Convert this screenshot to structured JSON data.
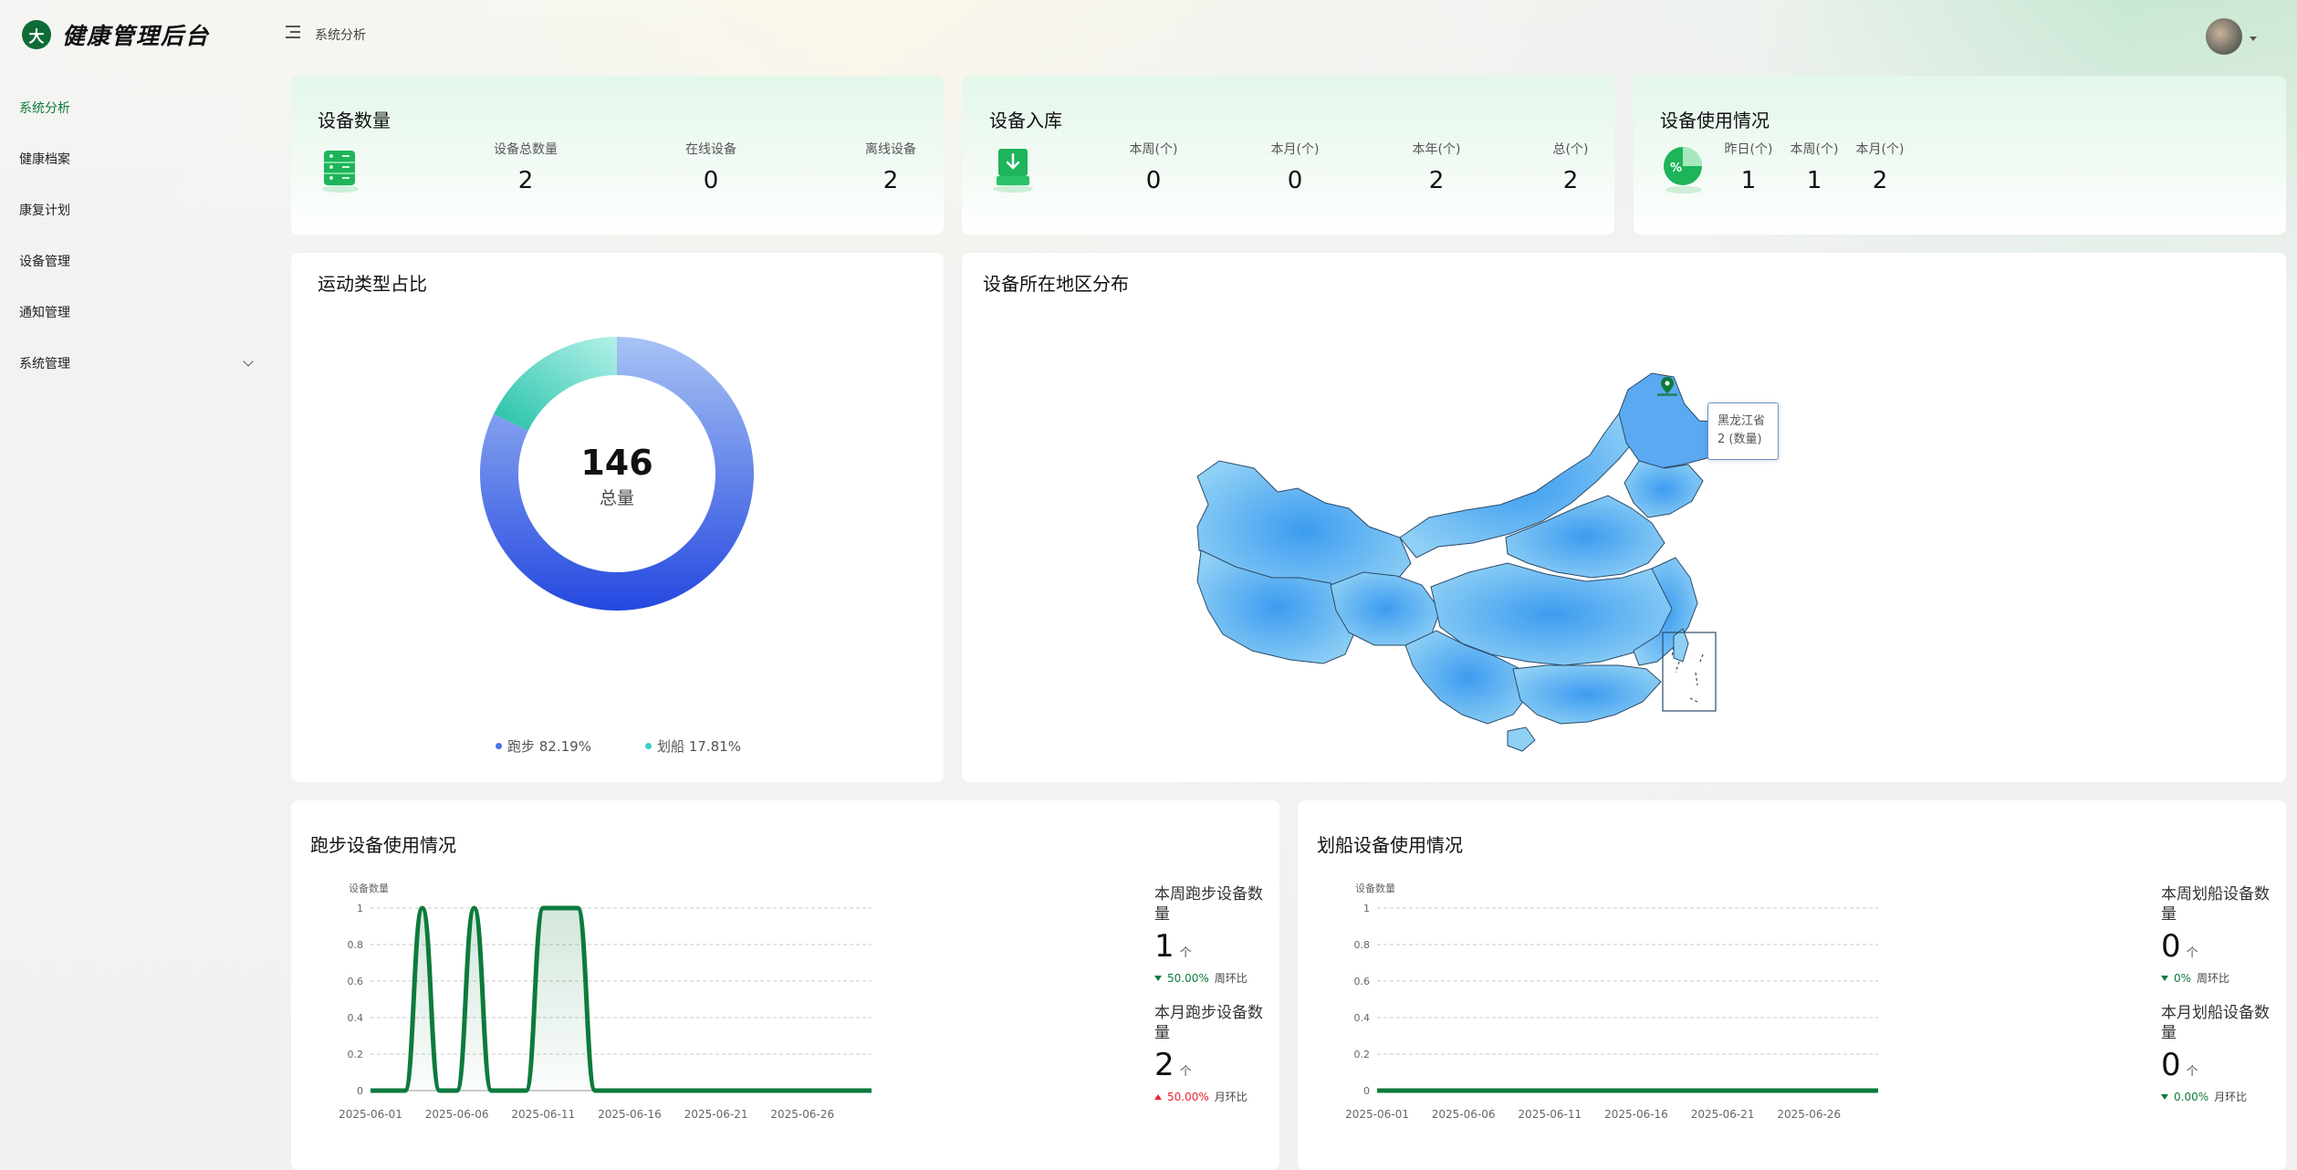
{
  "app": {
    "title": "健康管理后台",
    "logo_glyph": "大"
  },
  "header": {
    "breadcrumb": "系统分析"
  },
  "sidebar": {
    "items": [
      {
        "label": "系统分析",
        "active": true
      },
      {
        "label": "健康档案"
      },
      {
        "label": "康复计划"
      },
      {
        "label": "设备管理"
      },
      {
        "label": "通知管理"
      },
      {
        "label": "系统管理",
        "has_children": true
      }
    ]
  },
  "device_count": {
    "title": "设备数量",
    "icon": "device-stack-icon",
    "stats": [
      {
        "label": "设备总数量",
        "value": "2"
      },
      {
        "label": "在线设备",
        "value": "0"
      },
      {
        "label": "离线设备",
        "value": "2"
      }
    ]
  },
  "device_inbound": {
    "title": "设备入库",
    "icon": "download-box-icon",
    "stats": [
      {
        "label": "本周(个)",
        "value": "0"
      },
      {
        "label": "本月(个)",
        "value": "0"
      },
      {
        "label": "本年(个)",
        "value": "2"
      },
      {
        "label": "总(个)",
        "value": "2"
      }
    ]
  },
  "device_usage": {
    "title": "设备使用情况",
    "icon": "percent-pie-icon",
    "stats": [
      {
        "label": "昨日(个)",
        "value": "1"
      },
      {
        "label": "本周(个)",
        "value": "1"
      },
      {
        "label": "本月(个)",
        "value": "2"
      }
    ]
  },
  "exercise_share": {
    "title": "运动类型占比",
    "total_value": "146",
    "total_label": "总量",
    "legend": [
      {
        "label": "跑步 82.19%",
        "color": "#4a72e8"
      },
      {
        "label": "划船 17.81%",
        "color": "#36cfc9"
      }
    ]
  },
  "region_map": {
    "title": "设备所在地区分布",
    "map_label": "黑龙江省",
    "tooltip_region": "黑龙江省",
    "tooltip_value": "2 (数量)"
  },
  "running_usage": {
    "title": "跑步设备使用情况",
    "week_label": "本周跑步设备数量",
    "week_value": "1",
    "week_unit": "个",
    "week_change": "50.00%",
    "week_change_ctx": "周环比",
    "month_label": "本月跑步设备数量",
    "month_value": "2",
    "month_unit": "个",
    "month_change": "50.00%",
    "month_change_ctx": "月环比"
  },
  "rowing_usage": {
    "title": "划船设备使用情况",
    "week_label": "本周划船设备数量",
    "week_value": "0",
    "week_unit": "个",
    "week_change": "0%",
    "week_change_ctx": "周环比",
    "month_label": "本月划船设备数量",
    "month_value": "0",
    "month_unit": "个",
    "month_change": "0.00%",
    "month_change_ctx": "月环比"
  },
  "chart_data": [
    {
      "type": "pie",
      "title": "运动类型占比",
      "categories": [
        "跑步",
        "划船"
      ],
      "values": [
        82.19,
        17.81
      ],
      "total": 146,
      "legend_position": "bottom"
    },
    {
      "type": "area",
      "title": "跑步设备使用情况",
      "ylabel": "设备数量",
      "ylim": [
        0,
        1
      ],
      "yticks": [
        "0",
        "0.2",
        "0.4",
        "0.6",
        "0.8",
        "1"
      ],
      "xticks": [
        "2025-06-01",
        "2025-06-06",
        "2025-06-11",
        "2025-06-16",
        "2025-06-21",
        "2025-06-26"
      ],
      "grid": true,
      "x_start": "2025-06-01",
      "x_end": "2025-06-30",
      "series": [
        {
          "values": [
            0,
            0,
            0,
            1,
            0,
            0,
            1,
            0,
            0,
            0,
            1,
            1,
            1,
            0,
            0,
            0,
            0,
            0,
            0,
            0,
            0,
            0,
            0,
            0,
            0,
            0,
            0,
            0,
            0,
            0
          ]
        }
      ]
    },
    {
      "type": "area",
      "title": "划船设备使用情况",
      "ylabel": "设备数量",
      "ylim": [
        0,
        1
      ],
      "yticks": [
        "0",
        "0.2",
        "0.4",
        "0.6",
        "0.8",
        "1"
      ],
      "xticks": [
        "2025-06-01",
        "2025-06-06",
        "2025-06-11",
        "2025-06-16",
        "2025-06-21",
        "2025-06-26"
      ],
      "grid": true,
      "x_start": "2025-06-01",
      "x_end": "2025-06-30",
      "series": [
        {
          "values": [
            0,
            0,
            0,
            0,
            0,
            0,
            0,
            0,
            0,
            0,
            0,
            0,
            0,
            0,
            0,
            0,
            0,
            0,
            0,
            0,
            0,
            0,
            0,
            0,
            0,
            0,
            0,
            0,
            0,
            0
          ]
        }
      ]
    }
  ]
}
